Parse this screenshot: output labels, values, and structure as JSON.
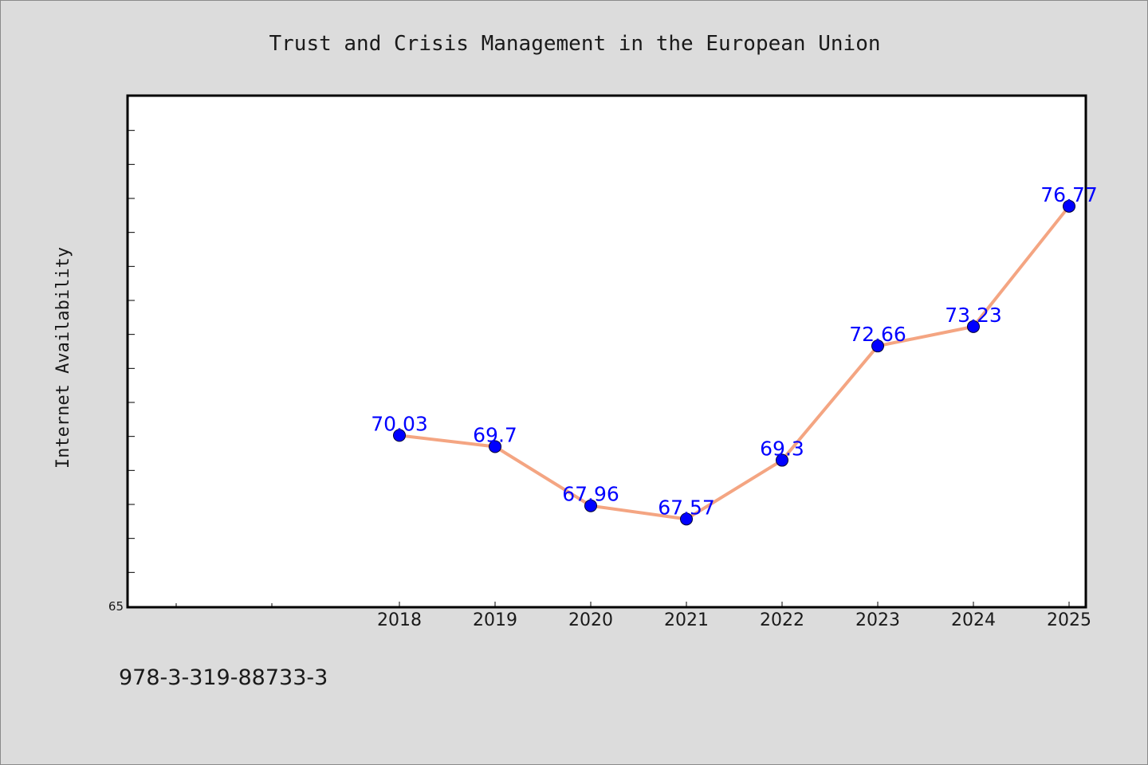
{
  "chart_data": {
    "type": "line",
    "title": "Trust and Crisis Management in the European Union",
    "xlabel": "",
    "ylabel": "Internet Availability",
    "categories": [
      "2018",
      "2019",
      "2020",
      "2021",
      "2022",
      "2023",
      "2024",
      "2025"
    ],
    "series": [
      {
        "values": [
          70.03,
          69.7,
          67.96,
          67.57,
          69.3,
          72.66,
          73.23,
          76.77
        ],
        "labels": [
          "70.03",
          "69.7",
          "67.96",
          "67.57",
          "69.3",
          "72.66",
          "73.23",
          "76.77"
        ]
      }
    ],
    "ylim": [
      65,
      80
    ],
    "yticks": [
      {
        "value": 65,
        "label": "65"
      }
    ],
    "grid": false,
    "legend": "none",
    "colors": {
      "line": "#f4a582",
      "marker": "#0000ff",
      "data_label": "#0000ff",
      "plot_background": "#ffffff",
      "page_background": "#dcdcdc"
    }
  },
  "footer": {
    "code": "978-3-319-88733-3"
  }
}
